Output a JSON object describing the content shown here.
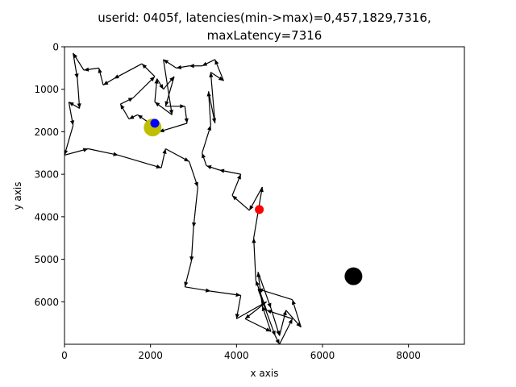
{
  "chart_data": {
    "type": "line",
    "title_line1": "userid: 0405f, latencies(min->max)=0,457,1829,7316,",
    "title_line2": "maxLatency=7316",
    "xlabel": "x axis",
    "ylabel": "y axis",
    "xlim": [
      0,
      9300
    ],
    "ylim": [
      7000,
      0
    ],
    "x_ticks": [
      0,
      2000,
      4000,
      6000,
      8000
    ],
    "y_ticks": [
      0,
      1000,
      2000,
      3000,
      4000,
      5000,
      6000
    ],
    "grid": false,
    "path": [
      [
        0,
        2550
      ],
      [
        550,
        2400
      ],
      [
        1250,
        2550
      ],
      [
        2250,
        2850
      ],
      [
        2350,
        2400
      ],
      [
        2900,
        2700
      ],
      [
        3100,
        3300
      ],
      [
        3000,
        4250
      ],
      [
        2950,
        5050
      ],
      [
        2800,
        5650
      ],
      [
        3400,
        5750
      ],
      [
        4100,
        5850
      ],
      [
        4000,
        6400
      ],
      [
        4700,
        6000
      ],
      [
        4200,
        6400
      ],
      [
        4800,
        6700
      ],
      [
        4600,
        6100
      ],
      [
        4500,
        5300
      ],
      [
        4800,
        6150
      ],
      [
        5000,
        6800
      ],
      [
        5150,
        6200
      ],
      [
        5500,
        6600
      ],
      [
        5300,
        5950
      ],
      [
        4500,
        5700
      ],
      [
        4900,
        6800
      ],
      [
        5000,
        7000
      ],
      [
        5300,
        6400
      ],
      [
        4700,
        6200
      ],
      [
        4450,
        5500
      ],
      [
        4400,
        4500
      ],
      [
        4600,
        3300
      ],
      [
        4300,
        3850
      ],
      [
        3900,
        3500
      ],
      [
        4100,
        3000
      ],
      [
        3600,
        2900
      ],
      [
        3300,
        2800
      ],
      [
        3200,
        2500
      ],
      [
        3400,
        1850
      ],
      [
        3350,
        1050
      ],
      [
        3500,
        1800
      ],
      [
        3400,
        600
      ],
      [
        3700,
        800
      ],
      [
        3500,
        300
      ],
      [
        3200,
        450
      ],
      [
        2900,
        450
      ],
      [
        2600,
        500
      ],
      [
        2300,
        300
      ],
      [
        2500,
        1600
      ],
      [
        2100,
        1300
      ],
      [
        2150,
        750
      ],
      [
        2300,
        1000
      ],
      [
        2550,
        700
      ],
      [
        2350,
        1400
      ],
      [
        2800,
        1400
      ],
      [
        2850,
        1800
      ],
      [
        2200,
        2000
      ],
      [
        2050,
        1850
      ],
      [
        1700,
        1600
      ],
      [
        1500,
        1700
      ],
      [
        1300,
        1350
      ],
      [
        1600,
        1200
      ],
      [
        2100,
        700
      ],
      [
        1800,
        400
      ],
      [
        1150,
        750
      ],
      [
        900,
        900
      ],
      [
        800,
        500
      ],
      [
        450,
        550
      ],
      [
        200,
        150
      ],
      [
        300,
        750
      ],
      [
        350,
        1450
      ],
      [
        100,
        1300
      ],
      [
        200,
        1850
      ],
      [
        0,
        2550
      ]
    ],
    "markers": [
      {
        "name": "start",
        "x": 2050,
        "y": 1900,
        "color": "#bfbf00",
        "size": 11
      },
      {
        "name": "current",
        "x": 2100,
        "y": 1800,
        "color": "#0000ff",
        "size": 5.5
      },
      {
        "name": "pointer",
        "x": 4530,
        "y": 3830,
        "color": "#ff0000",
        "size": 5.5
      },
      {
        "name": "target",
        "x": 6720,
        "y": 5400,
        "color": "#000000",
        "size": 11
      }
    ],
    "marker_colors": {
      "start": "#bfbf00",
      "current": "#0000ff",
      "pointer": "#ff0000",
      "target": "#000000"
    }
  }
}
